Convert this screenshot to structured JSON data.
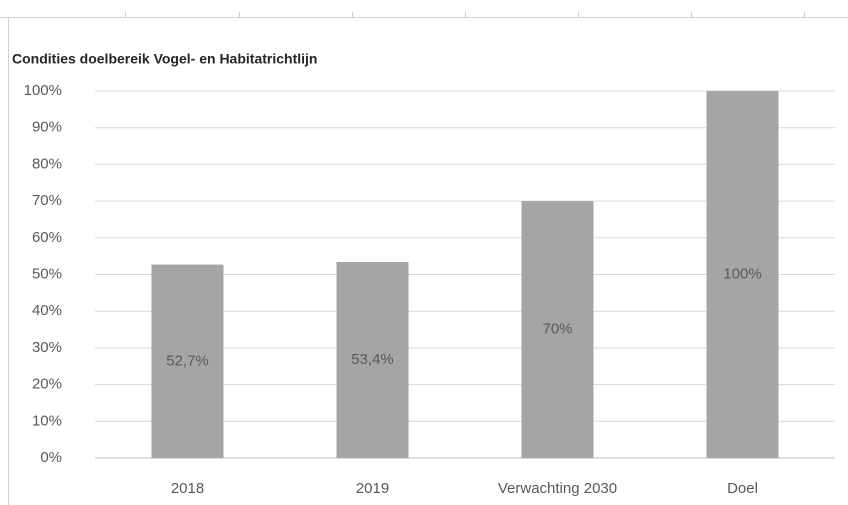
{
  "chart_data": {
    "type": "bar",
    "title": "Condities doelbereik Vogel- en Habitatrichtlijn",
    "categories": [
      "2018",
      "2019",
      "Verwachting 2030",
      "Doel"
    ],
    "values": [
      52.7,
      53.4,
      70,
      100
    ],
    "value_labels": [
      "52,7%",
      "53,4%",
      "70%",
      "100%"
    ],
    "color": "#a5a5a5",
    "ylim": [
      0,
      100
    ],
    "yticks": [
      {
        "value": 0,
        "label": "0%"
      },
      {
        "value": 10,
        "label": "10%"
      },
      {
        "value": 20,
        "label": "20%"
      },
      {
        "value": 30,
        "label": "30%"
      },
      {
        "value": 40,
        "label": "40%"
      },
      {
        "value": 50,
        "label": "50%"
      },
      {
        "value": 60,
        "label": "60%"
      },
      {
        "value": 70,
        "label": "70%"
      },
      {
        "value": 80,
        "label": "80%"
      },
      {
        "value": 90,
        "label": "90%"
      },
      {
        "value": 100,
        "label": "100%"
      }
    ],
    "grid": true
  }
}
